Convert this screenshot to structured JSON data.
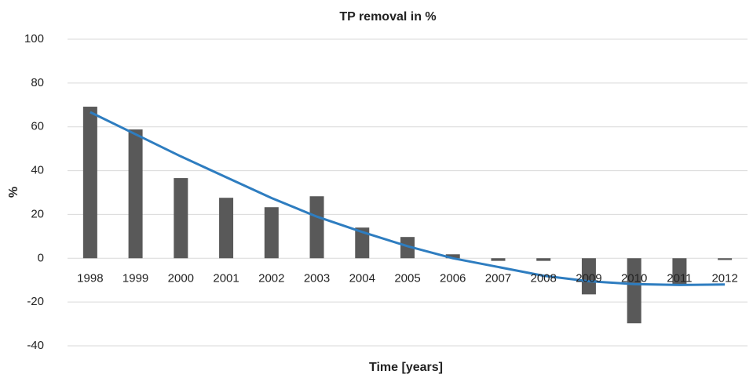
{
  "chart_data": {
    "type": "bar",
    "title": "TP removal in %",
    "x_label": "Time [years]",
    "y_label": "%",
    "categories": [
      "1998",
      "1999",
      "2000",
      "2001",
      "2002",
      "2003",
      "2004",
      "2005",
      "2006",
      "2007",
      "2008",
      "2009",
      "2010",
      "2011",
      "2012"
    ],
    "values": [
      69.2,
      58.8,
      36.6,
      27.6,
      23.3,
      28.3,
      14,
      9.7,
      1.8,
      -1.2,
      -1.2,
      -16.5,
      -29.7,
      -11.8,
      -0.8
    ],
    "color": "#595959",
    "trendline": {
      "color": "#2e7dc0",
      "values": [
        66.7,
        56.6,
        46.5,
        37,
        27.5,
        19,
        12,
        5.5,
        0,
        -4,
        -8,
        -10.5,
        -11.8,
        -12.2,
        -12
      ]
    },
    "ylim": [
      -40,
      100
    ],
    "yticks": [
      -40,
      -20,
      0,
      20,
      40,
      60,
      80,
      100
    ],
    "grid": true
  }
}
